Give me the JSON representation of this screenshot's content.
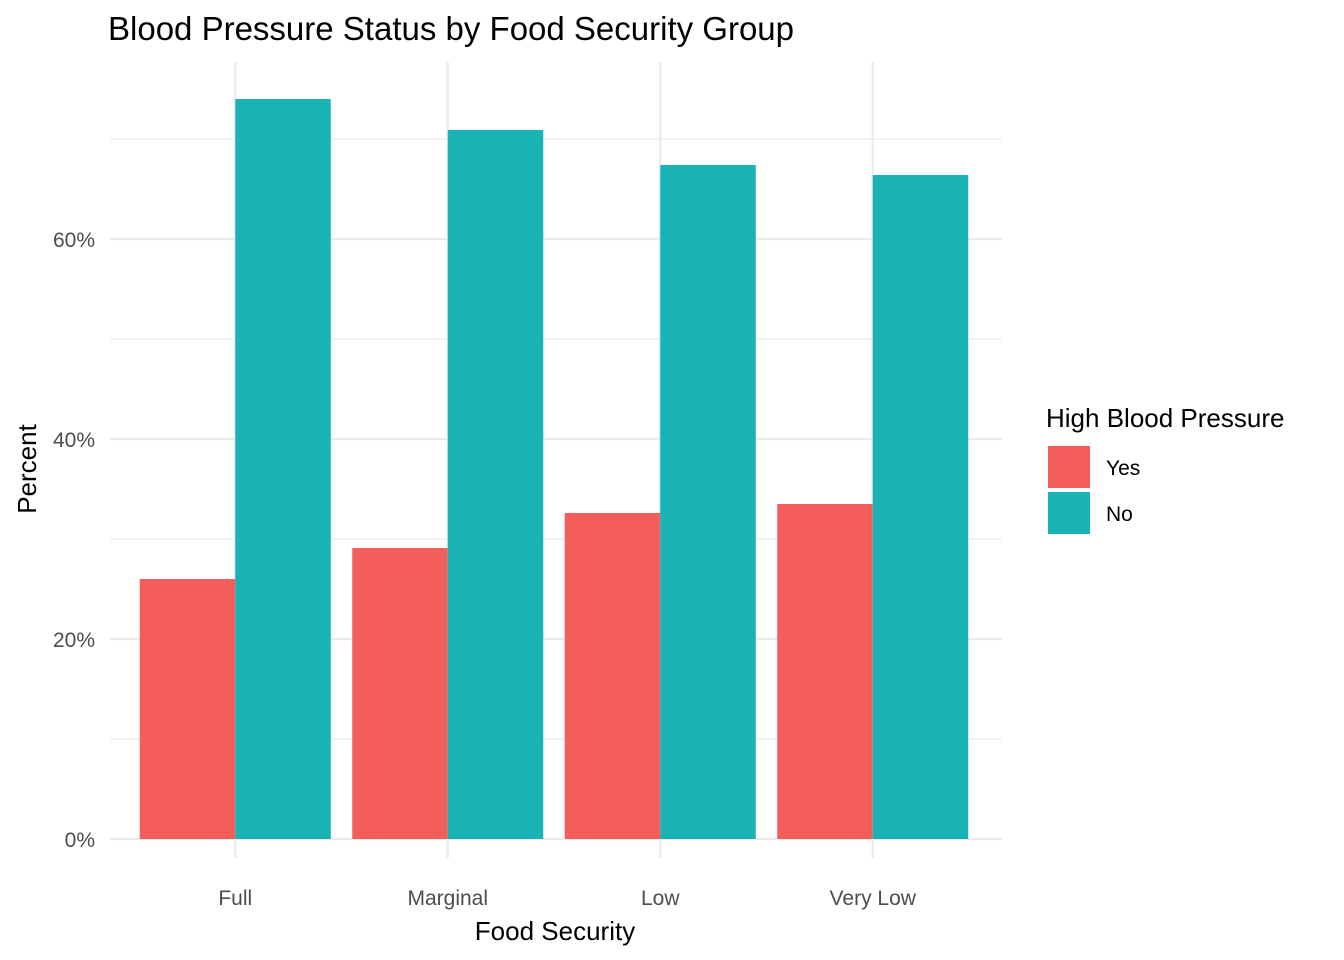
{
  "chart_data": {
    "type": "bar",
    "title": "Blood Pressure Status by Food Security Group",
    "xlabel": "Food Security",
    "ylabel": "Percent",
    "categories": [
      "Full",
      "Marginal",
      "Low",
      "Very Low"
    ],
    "series": [
      {
        "name": "Yes",
        "color": "#F35E5A",
        "values": [
          26.0,
          29.1,
          32.6,
          33.5
        ]
      },
      {
        "name": "No",
        "color": "#19B3B6",
        "values": [
          74.0,
          70.9,
          67.4,
          66.4
        ]
      }
    ],
    "ylim": [
      0,
      80
    ],
    "yticks": [
      0,
      20,
      40,
      60
    ],
    "ytick_labels": [
      "0%",
      "20%",
      "40%",
      "60%"
    ],
    "legend": {
      "title": "High Blood Pressure",
      "placement": "right",
      "items": [
        "Yes",
        "No"
      ]
    },
    "grid": true
  }
}
